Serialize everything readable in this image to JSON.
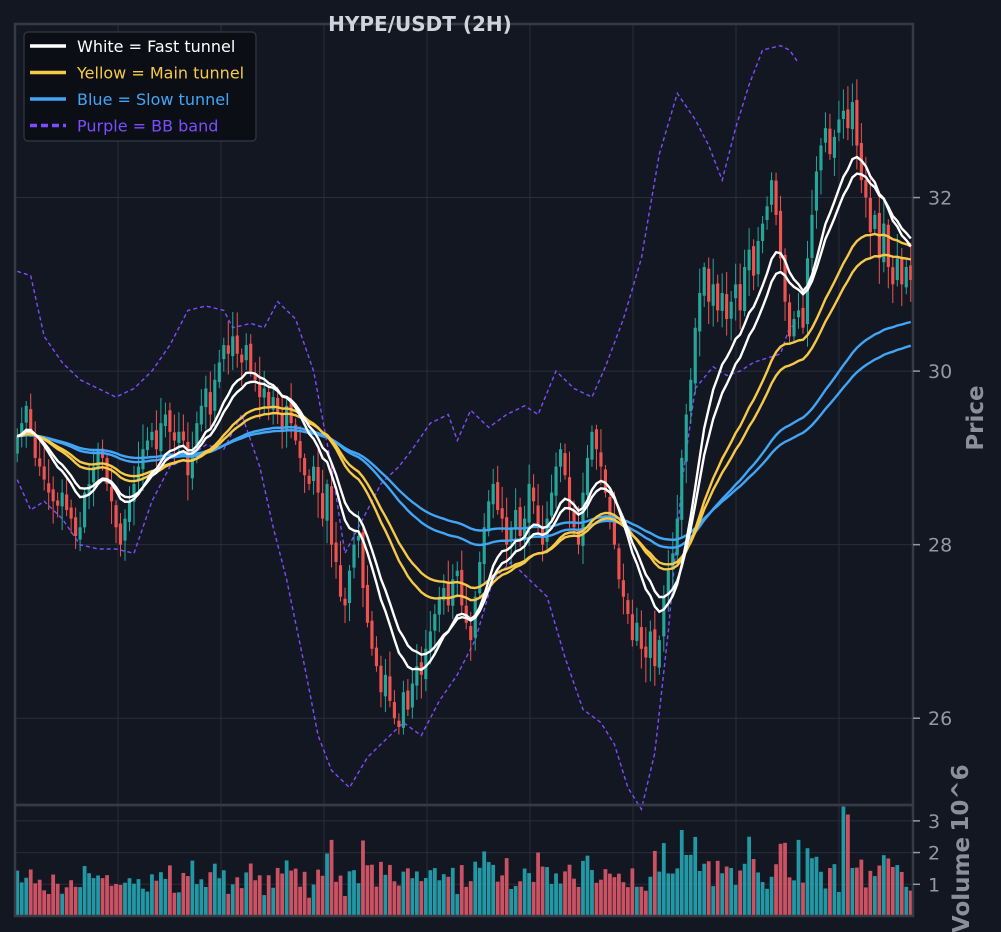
{
  "chart_data": {
    "type": "candlestick",
    "title": "HYPE/USDT (2H)",
    "price_axis": {
      "label": "Price",
      "ylim": [
        25.0,
        34.0
      ],
      "ticks": [
        26,
        28,
        30,
        32
      ]
    },
    "volume_axis": {
      "label": "Volume",
      "scale_label": "10^6",
      "ticks": [
        1,
        2,
        3
      ],
      "ylim": [
        0,
        3.5
      ]
    },
    "legend": {
      "placement": "top-left",
      "entries": [
        {
          "label": "White = Fast tunnel",
          "color": "#ffffff",
          "style": "solid"
        },
        {
          "label": "Yellow = Main tunnel",
          "color": "#f7c948",
          "style": "solid"
        },
        {
          "label": "Blue = Slow tunnel",
          "color": "#42a5f5",
          "style": "solid"
        },
        {
          "label": "Purple = BB band",
          "color": "#7c4dff",
          "style": "dashed"
        }
      ]
    },
    "colors": {
      "up": "#26a69a",
      "down": "#ef5350",
      "background": "#131722",
      "grid": "#2a2e39"
    },
    "close": [
      29.25,
      29.4,
      29.6,
      29.3,
      29.0,
      28.9,
      28.75,
      28.6,
      28.5,
      28.45,
      28.6,
      28.4,
      28.3,
      28.1,
      28.2,
      28.6,
      28.7,
      28.9,
      29.1,
      29.0,
      28.7,
      28.5,
      28.2,
      28.0,
      28.3,
      28.5,
      28.7,
      28.9,
      29.1,
      29.2,
      29.3,
      29.1,
      29.4,
      29.5,
      29.3,
      29.2,
      29.3,
      29.2,
      28.8,
      29.1,
      29.4,
      29.6,
      29.8,
      29.5,
      29.9,
      30.1,
      30.3,
      30.2,
      30.4,
      30.2,
      30.1,
      30.3,
      30.0,
      29.9,
      29.7,
      29.8,
      29.6,
      29.7,
      29.5,
      29.3,
      29.6,
      29.4,
      29.2,
      29.0,
      28.8,
      28.7,
      28.9,
      28.6,
      28.3,
      28.7,
      28.0,
      27.8,
      27.4,
      27.3,
      27.7,
      28.0,
      28.1,
      27.5,
      27.1,
      26.8,
      26.6,
      26.3,
      26.5,
      26.2,
      26.0,
      25.9,
      26.3,
      26.1,
      26.4,
      26.6,
      26.5,
      26.8,
      27.0,
      27.2,
      27.4,
      27.5,
      27.3,
      27.6,
      27.7,
      27.3,
      27.1,
      26.9,
      27.4,
      27.8,
      28.2,
      28.5,
      28.7,
      28.4,
      28.3,
      28.0,
      28.2,
      28.4,
      28.1,
      28.3,
      28.7,
      28.5,
      28.2,
      28.0,
      28.3,
      28.6,
      28.9,
      29.1,
      28.8,
      28.4,
      28.2,
      28.0,
      28.6,
      29.0,
      29.3,
      29.1,
      28.9,
      28.6,
      28.3,
      28.0,
      27.6,
      27.4,
      27.2,
      26.9,
      27.1,
      26.8,
      26.7,
      27.0,
      26.6,
      26.9,
      27.4,
      27.7,
      27.9,
      28.3,
      29.0,
      29.5,
      29.9,
      30.5,
      30.9,
      31.2,
      30.8,
      31.0,
      30.7,
      30.9,
      30.6,
      30.8,
      31.0,
      30.7,
      31.2,
      31.4,
      31.1,
      31.5,
      31.7,
      31.9,
      32.2,
      31.8,
      31.3,
      30.8,
      30.4,
      30.6,
      30.7,
      30.5,
      31.3,
      31.8,
      32.3,
      32.6,
      32.8,
      32.5,
      32.7,
      32.9,
      33.0,
      32.8,
      33.1,
      32.6,
      32.2,
      32.0,
      31.6,
      31.8,
      31.3,
      31.7,
      31.2,
      31.0,
      31.3,
      31.0,
      31.2,
      31.05
    ],
    "bb_upper_points": [
      [
        0,
        31.15
      ],
      [
        3,
        31.1
      ],
      [
        6,
        30.4
      ],
      [
        10,
        30.1
      ],
      [
        14,
        29.9
      ],
      [
        18,
        29.8
      ],
      [
        22,
        29.7
      ],
      [
        26,
        29.8
      ],
      [
        30,
        30.0
      ],
      [
        34,
        30.3
      ],
      [
        38,
        30.7
      ],
      [
        42,
        30.75
      ],
      [
        46,
        30.7
      ],
      [
        48,
        30.5
      ],
      [
        52,
        30.55
      ],
      [
        55,
        30.5
      ],
      [
        58,
        30.8
      ],
      [
        62,
        30.6
      ],
      [
        66,
        30.0
      ],
      [
        70,
        28.9
      ],
      [
        73,
        27.9
      ],
      [
        77,
        28.3
      ],
      [
        81,
        28.7
      ],
      [
        85,
        28.9
      ],
      [
        88,
        29.1
      ],
      [
        92,
        29.4
      ],
      [
        96,
        29.5
      ],
      [
        98,
        29.2
      ],
      [
        101,
        29.55
      ],
      [
        105,
        29.35
      ],
      [
        109,
        29.5
      ],
      [
        113,
        29.6
      ],
      [
        116,
        29.5
      ],
      [
        120,
        30.0
      ],
      [
        124,
        29.8
      ],
      [
        128,
        29.7
      ],
      [
        131,
        30.05
      ],
      [
        135,
        30.6
      ],
      [
        139,
        31.3
      ],
      [
        143,
        32.5
      ],
      [
        147,
        33.2
      ],
      [
        151,
        32.9
      ],
      [
        154,
        32.6
      ],
      [
        157,
        32.2
      ],
      [
        160,
        32.8
      ],
      [
        163,
        33.3
      ],
      [
        166,
        33.7
      ],
      [
        170,
        33.75
      ],
      [
        172,
        33.7
      ],
      [
        174,
        33.55
      ]
    ],
    "bb_lower_points": [
      [
        0,
        28.75
      ],
      [
        3,
        28.4
      ],
      [
        6,
        28.5
      ],
      [
        10,
        28.3
      ],
      [
        14,
        28.0
      ],
      [
        18,
        27.95
      ],
      [
        22,
        27.95
      ],
      [
        26,
        27.9
      ],
      [
        30,
        28.5
      ],
      [
        34,
        28.9
      ],
      [
        38,
        29.0
      ],
      [
        42,
        29.15
      ],
      [
        46,
        29.1
      ],
      [
        50,
        29.5
      ],
      [
        54,
        28.9
      ],
      [
        57,
        28.2
      ],
      [
        60,
        27.6
      ],
      [
        64,
        26.6
      ],
      [
        67,
        25.8
      ],
      [
        70,
        25.4
      ],
      [
        74,
        25.2
      ],
      [
        78,
        25.55
      ],
      [
        82,
        25.75
      ],
      [
        86,
        25.95
      ],
      [
        90,
        25.8
      ],
      [
        94,
        26.2
      ],
      [
        98,
        26.5
      ],
      [
        102,
        26.9
      ],
      [
        106,
        27.6
      ],
      [
        110,
        27.8
      ],
      [
        114,
        27.6
      ],
      [
        118,
        27.4
      ],
      [
        122,
        26.7
      ],
      [
        126,
        26.1
      ],
      [
        130,
        25.95
      ],
      [
        133,
        25.7
      ],
      [
        136,
        25.2
      ],
      [
        139,
        24.95
      ],
      [
        142,
        25.6
      ],
      [
        145,
        27.0
      ],
      [
        148,
        28.7
      ],
      [
        151,
        29.8
      ],
      [
        155,
        30.05
      ],
      [
        158,
        29.95
      ],
      [
        161,
        30.0
      ],
      [
        164,
        30.1
      ],
      [
        167,
        30.15
      ],
      [
        170,
        30.2
      ],
      [
        172,
        30.5
      ],
      [
        174,
        30.55
      ]
    ]
  }
}
